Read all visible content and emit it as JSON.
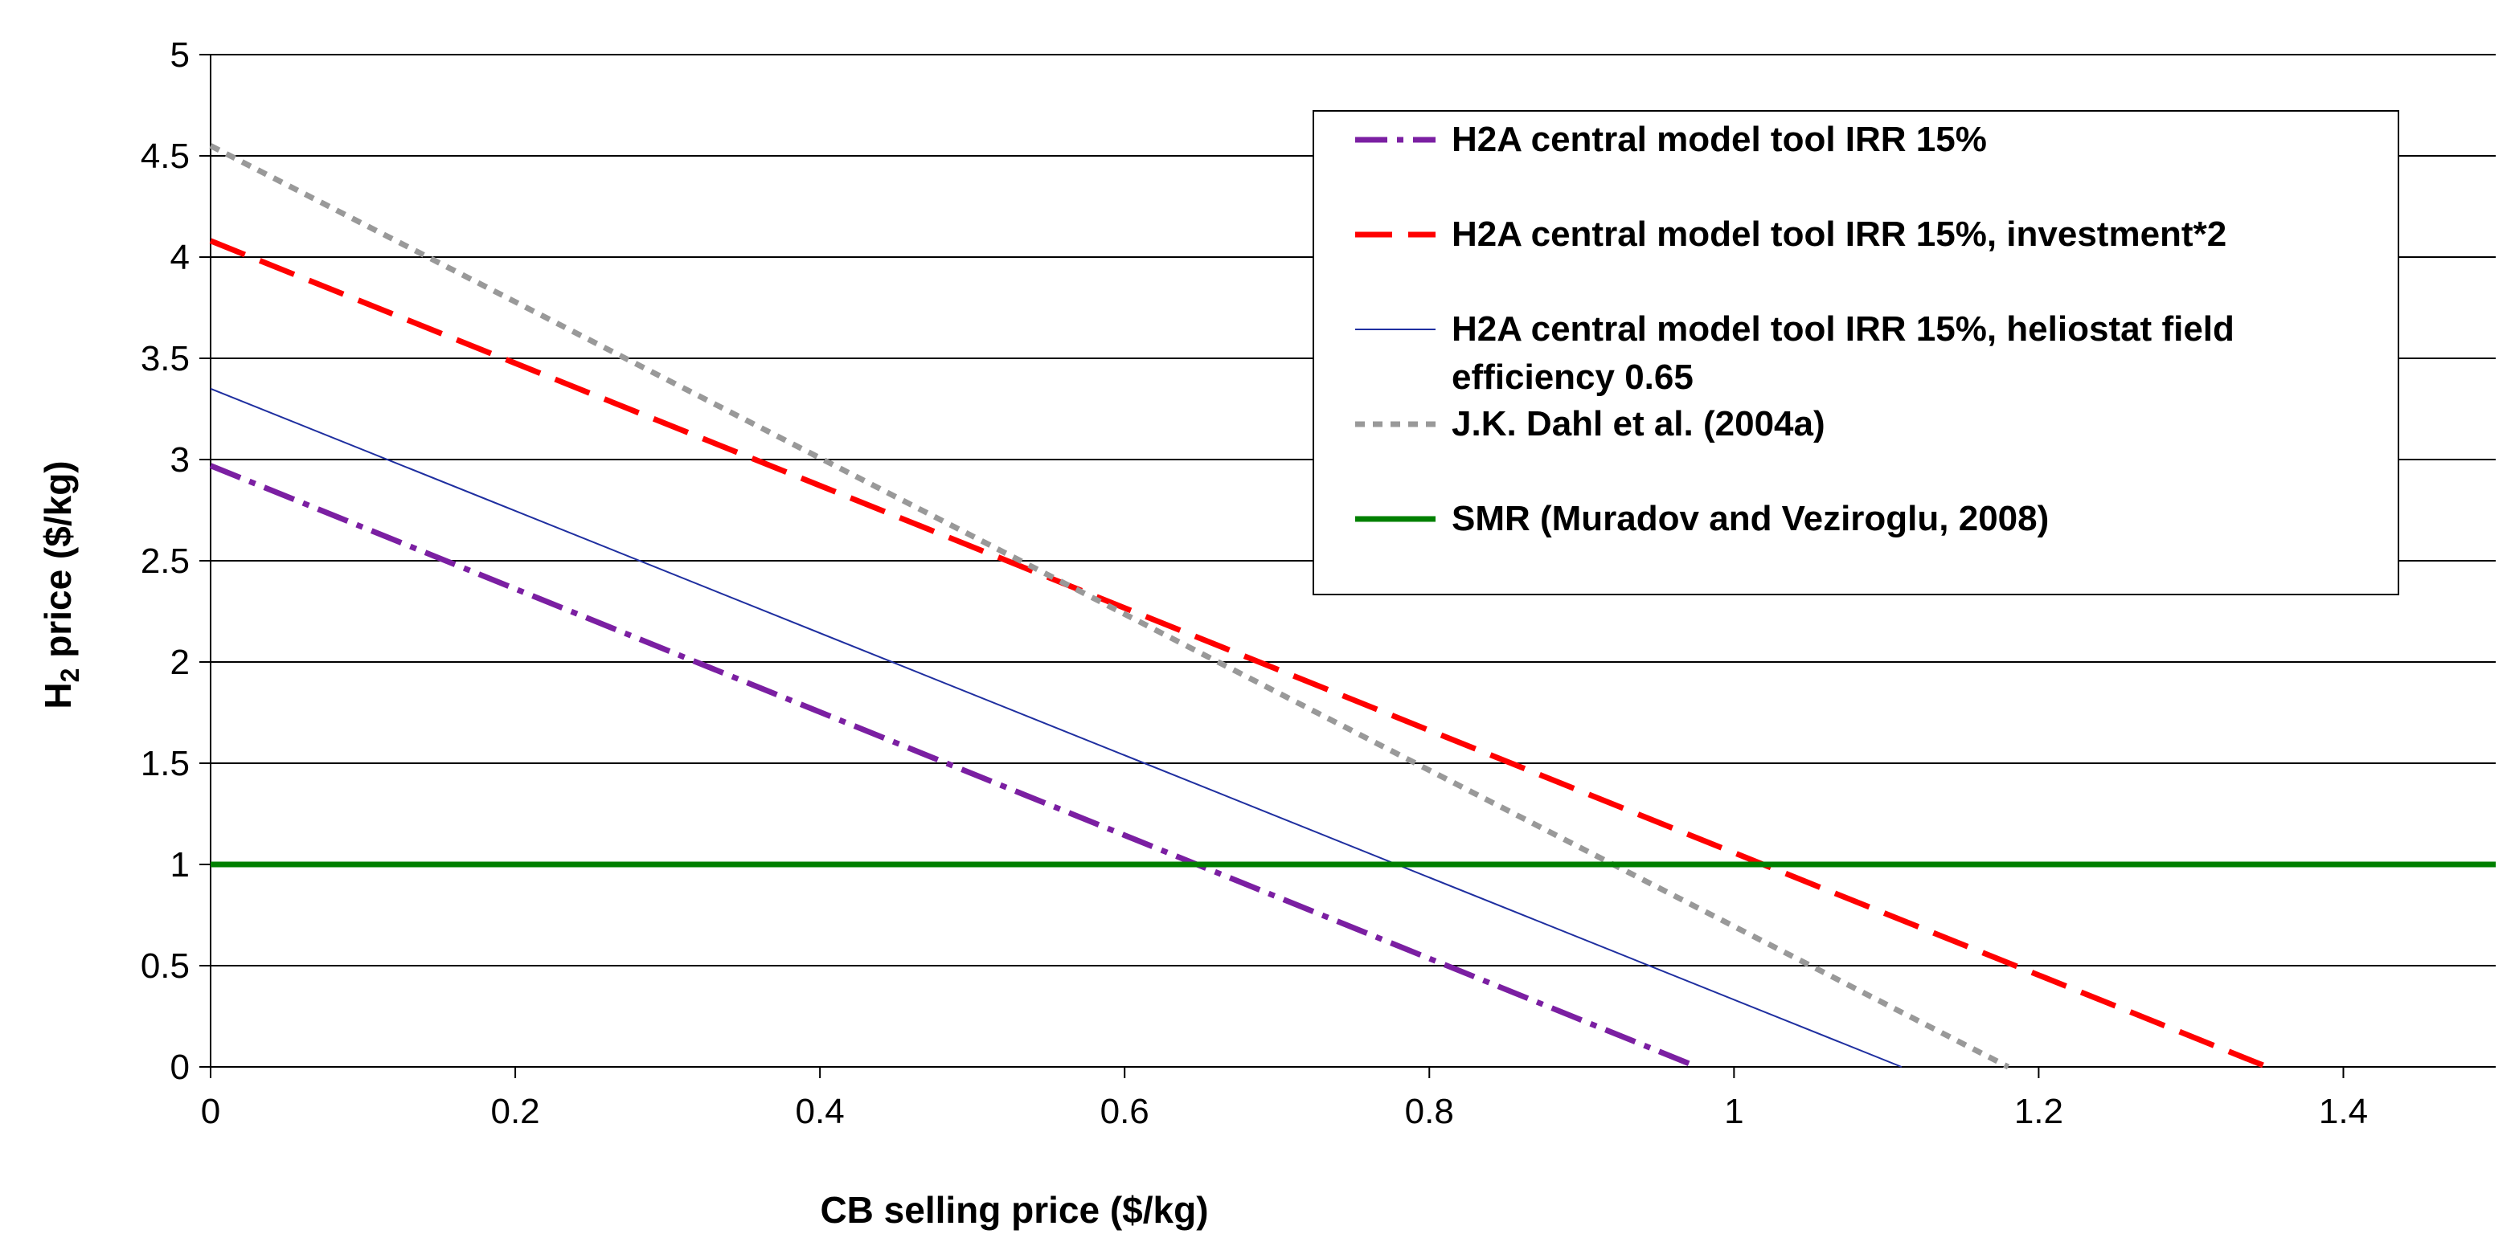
{
  "chart_data": {
    "type": "line",
    "title": "",
    "xlabel": "CB selling price ($/kg)",
    "ylabel_main": "H",
    "ylabel_sub": "2",
    "ylabel_rest": " price ($/kg)",
    "xlim": [
      0,
      1.5
    ],
    "ylim": [
      0,
      5
    ],
    "x_ticks": [
      0,
      0.2,
      0.4,
      0.6,
      0.8,
      1,
      1.2,
      1.4
    ],
    "x_tick_labels": [
      "0",
      "0.2",
      "0.4",
      "0.6",
      "0.8",
      "1",
      "1.2",
      "1.4"
    ],
    "y_ticks": [
      0,
      0.5,
      1,
      1.5,
      2,
      2.5,
      3,
      3.5,
      4,
      4.5,
      5
    ],
    "y_tick_labels": [
      "0",
      "0.5",
      "1",
      "1.5",
      "2",
      "2.5",
      "3",
      "3.5",
      "4",
      "4.5",
      "5"
    ],
    "grid": "horizontal",
    "legend_position": "top-right",
    "series": [
      {
        "name": "H2A central model tool IRR 15%",
        "color": "#7B1FA2",
        "style": "dash-dot",
        "x": [
          0,
          0.976
        ],
        "y": [
          2.97,
          0
        ]
      },
      {
        "name": "H2A central model tool IRR 15%, investment*2",
        "color": "#FF0000",
        "style": "dash",
        "x": [
          0,
          1.35
        ],
        "y": [
          4.08,
          0
        ]
      },
      {
        "name_line1": "H2A central model tool IRR 15%, heliostat field",
        "name_line2": "efficiency 0.65",
        "color": "#1F2FA0",
        "style": "solid-thin",
        "x": [
          0,
          1.11
        ],
        "y": [
          3.35,
          0
        ]
      },
      {
        "name": "J.K. Dahl et al. (2004a)",
        "color": "#999999",
        "style": "dot",
        "x": [
          0,
          1.18
        ],
        "y": [
          4.55,
          0
        ]
      },
      {
        "name": "SMR (Muradov and Veziroglu, 2008)",
        "color": "#008000",
        "style": "solid-thick",
        "x": [
          0,
          1.5
        ],
        "y": [
          1,
          1
        ]
      }
    ]
  }
}
